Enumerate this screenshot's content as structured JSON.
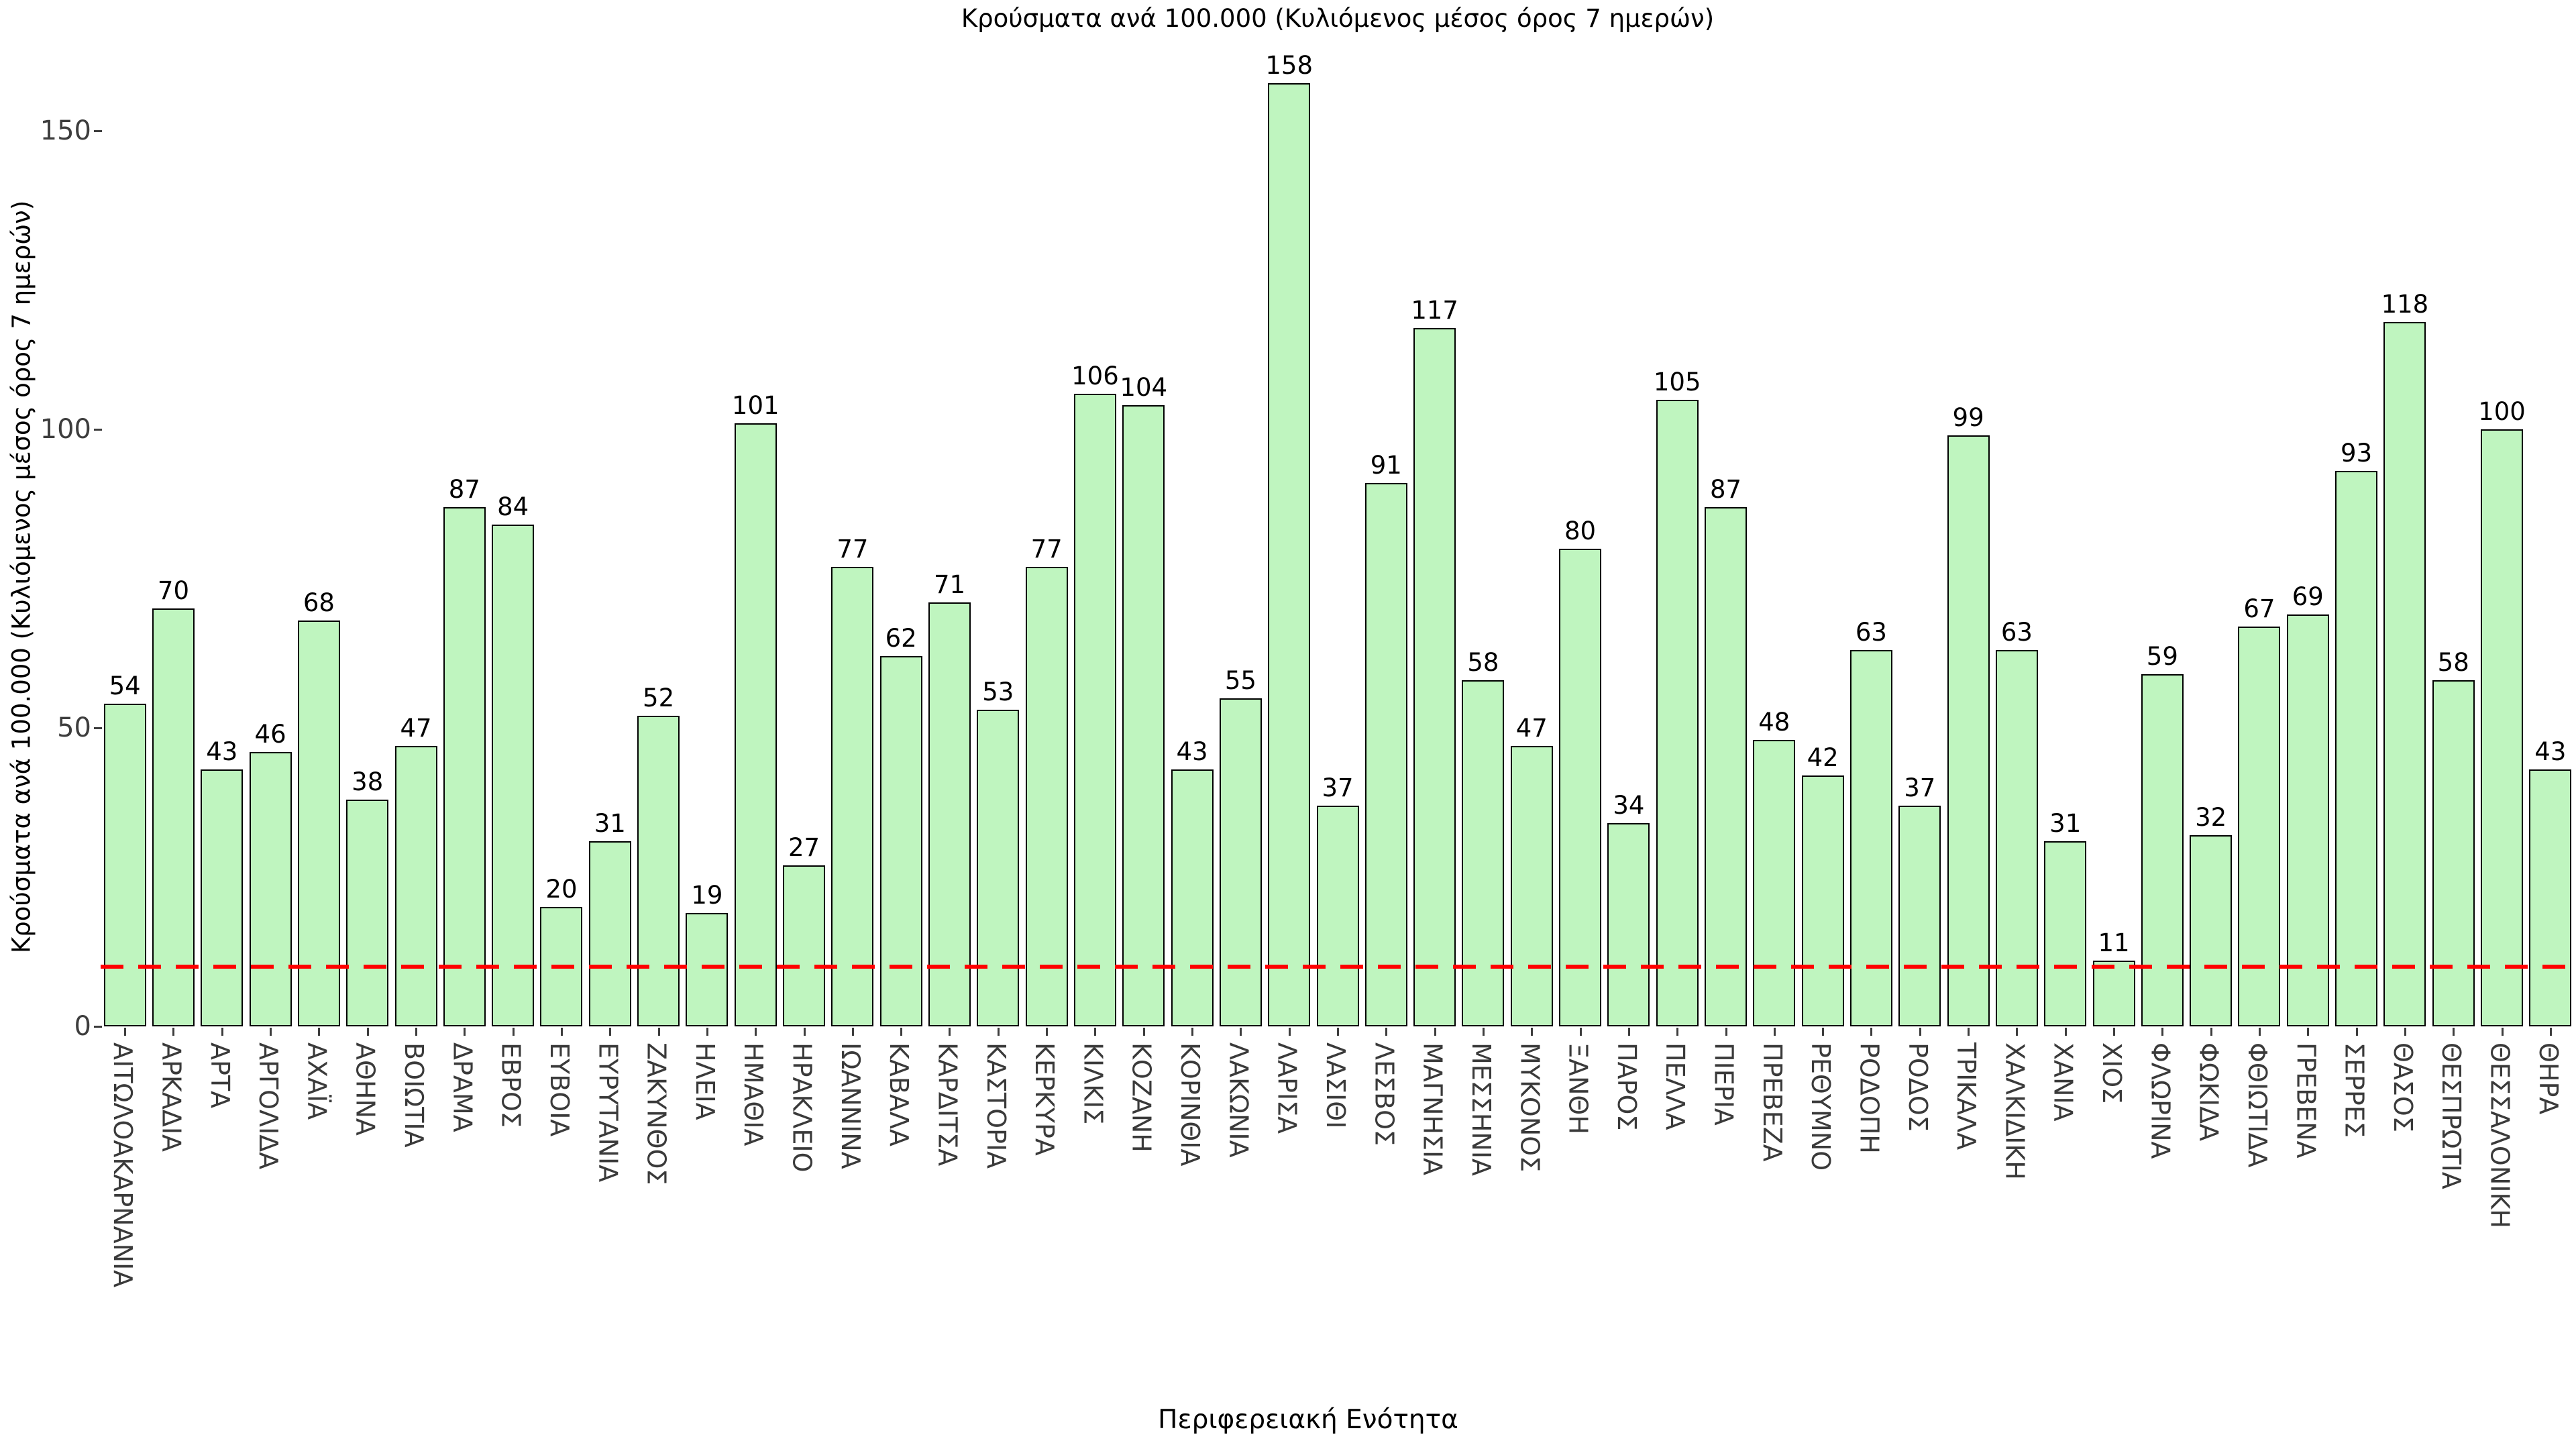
{
  "chart_data": {
    "type": "bar",
    "title": "Κρούσματα ανά 100.000 (Κυλιόμενος μέσος όρος 7 ημερών)",
    "xlabel": "Περιφερειακή Ενότητα",
    "ylabel": "Κρούσματα ανά 100.000 (Κυλιόμενος μέσος όρος 7 ημερών)",
    "categories": [
      "ΑΙΤΩΛΟΑΚΑΡΝΑΝΙΑ",
      "ΑΡΚΑΔΙΑ",
      "ΑΡΤΑ",
      "ΑΡΓΟΛΙΔΑ",
      "ΑΧΑΪΑ",
      "ΑΘΗΝΑ",
      "ΒΟΙΩΤΙΑ",
      "ΔΡΑΜΑ",
      "ΕΒΡΟΣ",
      "ΕΥΒΟΙΑ",
      "ΕΥΡΥΤΑΝΙΑ",
      "ΖΑΚΥΝΘΟΣ",
      "ΗΛΕΙΑ",
      "ΗΜΑΘΙΑ",
      "ΗΡΑΚΛΕΙΟ",
      "ΙΩΑΝΝΙΝΑ",
      "ΚΑΒΑΛΑ",
      "ΚΑΡΔΙΤΣΑ",
      "ΚΑΣΤΟΡΙΑ",
      "ΚΕΡΚΥΡΑ",
      "ΚΙΛΚΙΣ",
      "ΚΟΖΑΝΗ",
      "ΚΟΡΙΝΘΙΑ",
      "ΛΑΚΩΝΙΑ",
      "ΛΑΡΙΣΑ",
      "ΛΑΣΙΘΙ",
      "ΛΕΣΒΟΣ",
      "ΜΑΓΝΗΣΙΑ",
      "ΜΕΣΣΗΝΙΑ",
      "ΜΥΚΟΝΟΣ",
      "ΞΑΝΘΗ",
      "ΠΑΡΟΣ",
      "ΠΕΛΛΑ",
      "ΠΙΕΡΙΑ",
      "ΠΡΕΒΕΖΑ",
      "ΡΕΘΥΜΝΟ",
      "ΡΟΔΟΠΗ",
      "ΡΟΔΟΣ",
      "ΤΡΙΚΑΛΑ",
      "ΧΑΛΚΙΔΙΚΗ",
      "ΧΑΝΙΑ",
      "ΧΙΟΣ",
      "ΦΛΩΡΙΝΑ",
      "ΦΩΚΙΔΑ",
      "ΦΘΙΩΤΙΔΑ",
      "ΓΡΕΒΕΝΑ",
      "ΣΕΡΡΕΣ",
      "ΘΑΣΟΣ",
      "ΘΕΣΠΡΩΤΙΑ",
      "ΘΕΣΣΑΛΟΝΙΚΗ",
      "ΘΗΡΑ"
    ],
    "values": [
      54,
      70,
      43,
      46,
      68,
      38,
      47,
      87,
      84,
      20,
      31,
      52,
      19,
      101,
      27,
      77,
      62,
      71,
      53,
      77,
      106,
      104,
      43,
      55,
      158,
      37,
      91,
      117,
      58,
      47,
      80,
      34,
      105,
      87,
      48,
      42,
      63,
      37,
      99,
      63,
      31,
      11,
      59,
      32,
      67,
      69,
      93,
      118,
      58,
      100,
      43
    ],
    "yticks": [
      0,
      50,
      100,
      150
    ],
    "ylim": [
      0,
      165
    ],
    "grid": false,
    "legend": null,
    "bar_fill_color": "#BFF5BF",
    "bar_border_color": "#000000",
    "value_label_color": "#000000",
    "tick_label_color": "#3D3D3D",
    "reference_line": {
      "value": 10,
      "color": "#FF0000",
      "style": "dashed"
    }
  }
}
